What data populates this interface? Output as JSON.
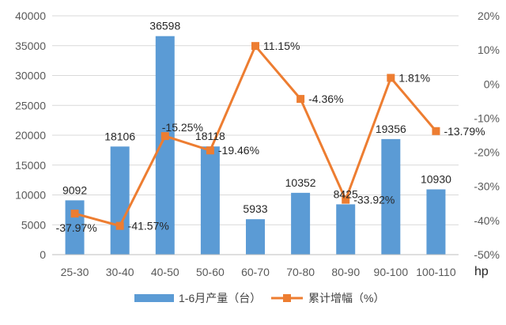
{
  "chart_data": {
    "type": "bar",
    "categories": [
      "25-30",
      "30-40",
      "40-50",
      "50-60",
      "60-70",
      "70-80",
      "80-90",
      "90-100",
      "100-110"
    ],
    "series": [
      {
        "name": "1-6月产量（台）",
        "type": "bar",
        "axis": "left",
        "values": [
          9092,
          18106,
          36598,
          18118,
          5933,
          10352,
          8425,
          19356,
          10930
        ],
        "labels": [
          "9092",
          "18106",
          "36598",
          "18118",
          "5933",
          "10352",
          "8425",
          "19356",
          "10930"
        ],
        "color": "#5b9bd5"
      },
      {
        "name": "累计增幅（%）",
        "type": "line",
        "axis": "right",
        "values": [
          -37.97,
          -41.57,
          -15.25,
          -19.46,
          11.15,
          -4.36,
          -33.92,
          1.81,
          -13.79
        ],
        "labels": [
          "-37.97%",
          "-41.57%",
          "-15.25%",
          "-19.46%",
          "11.15%",
          "-4.36%",
          "-33.92%",
          "1.81%",
          "-13.79%"
        ],
        "color": "#ed7d31"
      }
    ],
    "y_left": {
      "range": [
        0,
        40000
      ],
      "ticks": [
        "0",
        "5000",
        "10000",
        "15000",
        "20000",
        "25000",
        "30000",
        "35000",
        "40000"
      ]
    },
    "y_right": {
      "range": [
        -50,
        20
      ],
      "ticks": [
        "-50%",
        "-40%",
        "-30%",
        "-20%",
        "-10%",
        "0%",
        "10%",
        "20%"
      ]
    },
    "xunit": "hp",
    "grid": true,
    "legend_position": "bottom"
  }
}
